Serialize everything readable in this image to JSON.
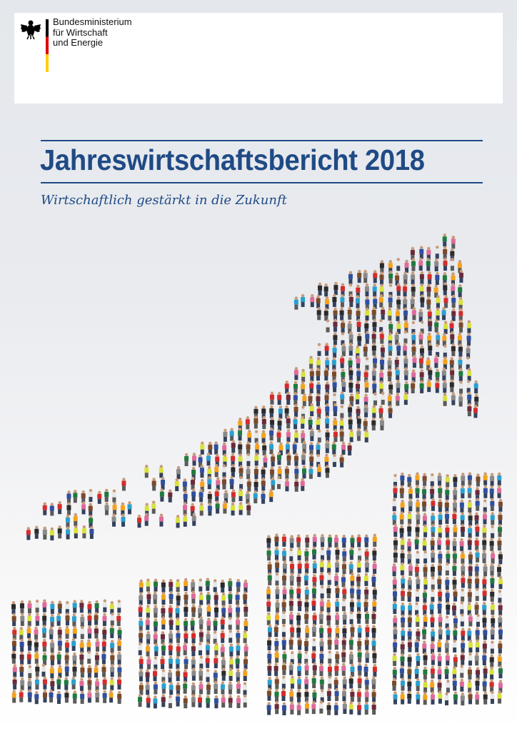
{
  "header": {
    "ministry_lines": [
      "Bundesministerium",
      "für Wirtschaft",
      "und Energie"
    ],
    "logo_icon": "federal-eagle-icon",
    "flag_colors": [
      "#000000",
      "#dd0000",
      "#ffce00"
    ]
  },
  "cover": {
    "title": "Jahreswirtschaftsbericht 2018",
    "subtitle": "Wirtschaftlich gestärkt in die Zukunft",
    "accent_color": "#1f4a85"
  },
  "illustration": {
    "description_icon": "crowd-rising-arrow-and-bars-image",
    "people_colors": [
      "#d62b2b",
      "#2aa0d0",
      "#f5a21a",
      "#2b2b2b",
      "#e8e8e8",
      "#1f7a3e",
      "#d8e23a",
      "#7a4a2a",
      "#e06a9a",
      "#2f4fa0",
      "#8a8a8a",
      "#6a2a3a"
    ]
  }
}
